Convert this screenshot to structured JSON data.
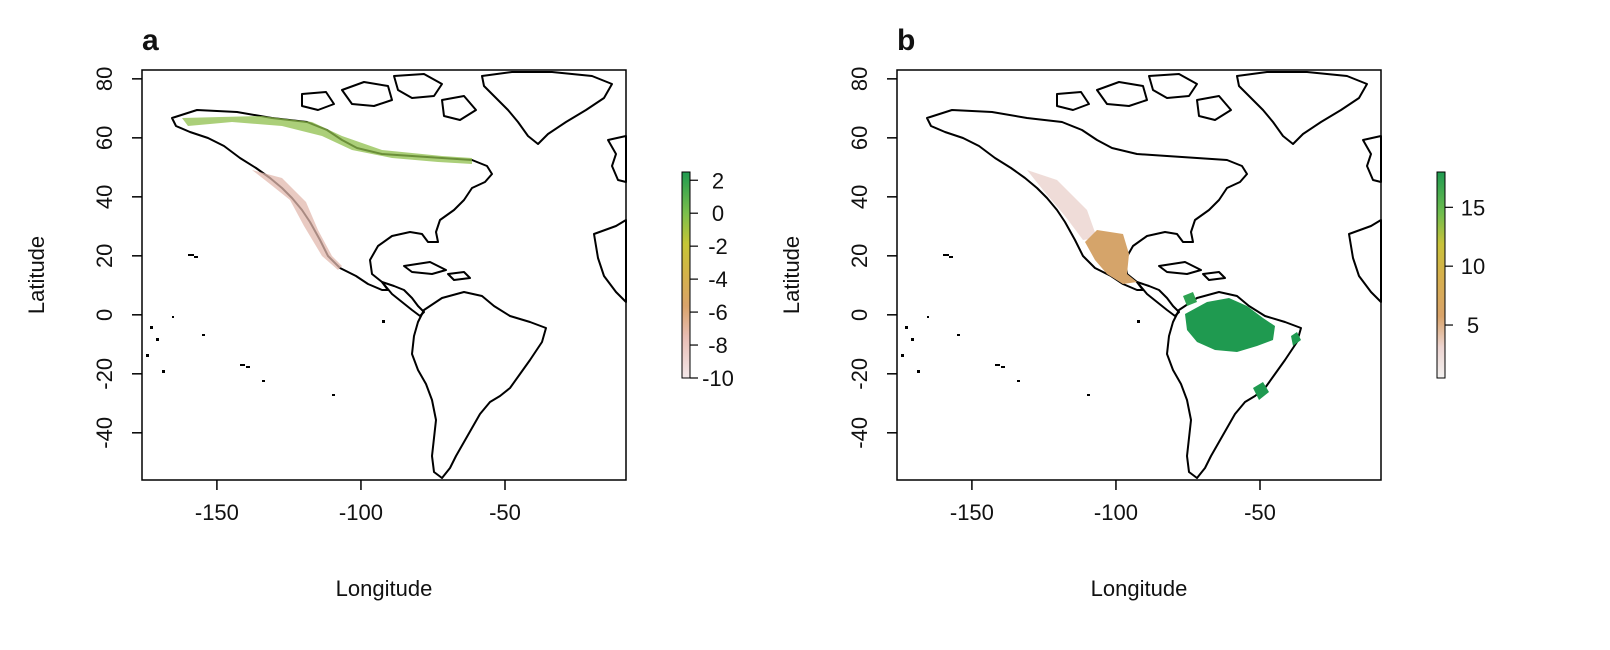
{
  "axes": {
    "xlabel": "Longitude",
    "ylabel": "Latitude",
    "x_ticks": [
      -150,
      -100,
      -50
    ],
    "x_tick_labels": [
      "-150",
      "-100",
      "-50"
    ],
    "y_ticks": [
      -40,
      -20,
      0,
      20,
      40,
      60,
      80
    ],
    "y_tick_labels": [
      "-40",
      "-20",
      "0",
      "20",
      "40",
      "60",
      "80"
    ],
    "xlim": [
      -176,
      -8
    ],
    "ylim": [
      -56,
      83
    ]
  },
  "panels": [
    {
      "letter": "a",
      "legend": {
        "tick_values": [
          2,
          0,
          -2,
          -4,
          -6,
          -8,
          -10
        ],
        "tick_labels": [
          "2",
          "0",
          "-2",
          "-4",
          "-6",
          "-8",
          "-10"
        ],
        "range": [
          -10,
          2.5
        ],
        "colors": [
          "#f3e7e9",
          "#e8bdb4",
          "#d9a36a",
          "#d4b24a",
          "#c6c636",
          "#7bbf4c",
          "#1f9a50"
        ]
      }
    },
    {
      "letter": "b",
      "legend": {
        "tick_values": [
          15,
          10,
          5
        ],
        "tick_labels": [
          "15",
          "10",
          "5"
        ],
        "range": [
          0.5,
          18
        ],
        "colors": [
          "#f3f1f0",
          "#ecd4d0",
          "#d9a36a",
          "#d6b04c",
          "#c8c23a",
          "#6fbd4e",
          "#1f9a50"
        ]
      }
    }
  ],
  "chart_data": {
    "type": "heatmap",
    "description_values": {
      "panel_a_scale": [
        -10,
        2
      ],
      "panel_b_scale": [
        0,
        18
      ]
    }
  },
  "colors": {
    "gradient_low": "#f2e8ea",
    "gradient_mid": "#d9a36a",
    "gradient_high": "#1e9b52",
    "coastline": "#000000"
  }
}
